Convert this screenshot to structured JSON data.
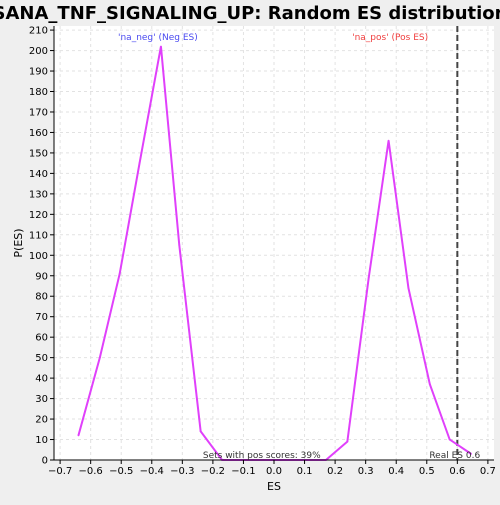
{
  "chart_data": {
    "type": "line",
    "title": "SANA_TNF_SIGNALING_UP: Random ES distribution",
    "xlabel": "ES",
    "ylabel": "P(ES)",
    "xlim": [
      -0.72,
      0.72
    ],
    "ylim": [
      0,
      212
    ],
    "x_ticks": [
      -0.7,
      -0.6,
      -0.5,
      -0.4,
      -0.3,
      -0.2,
      -0.1,
      0.0,
      0.1,
      0.2,
      0.3,
      0.4,
      0.5,
      0.6,
      0.7
    ],
    "x_tick_labels": [
      "−0.7",
      "−0.6",
      "−0.5",
      "−0.4",
      "−0.3",
      "−0.2",
      "−0.1",
      "0.0",
      "0.1",
      "0.2",
      "0.3",
      "0.4",
      "0.5",
      "0.6",
      "0.7"
    ],
    "y_ticks": [
      0,
      10,
      20,
      30,
      40,
      50,
      60,
      70,
      80,
      90,
      100,
      110,
      120,
      130,
      140,
      150,
      160,
      170,
      180,
      190,
      200,
      210
    ],
    "grid": true,
    "series": [
      {
        "name": "distribution",
        "color": "#e040fb",
        "x": [
          -0.64,
          -0.57,
          -0.505,
          -0.44,
          -0.37,
          -0.31,
          -0.24,
          -0.17,
          -0.105,
          -0.04,
          0.03,
          0.1,
          0.17,
          0.24,
          0.31,
          0.375,
          0.44,
          0.51,
          0.575,
          0.645
        ],
        "y": [
          12,
          50,
          91,
          145,
          202,
          105,
          14,
          0,
          0,
          0,
          0,
          0,
          0,
          9,
          89,
          156,
          84,
          37,
          10,
          3
        ]
      }
    ],
    "real_es": 0.6,
    "real_es_color": "#444444",
    "annotations": {
      "neg_label": "'na_neg' (Neg ES)",
      "neg_color": "#4a4af0",
      "pos_label": "'na_pos' (Pos ES)",
      "pos_color": "#f04040",
      "pos_scores": "Sets with pos scores: 39%",
      "real_es_label": "Real ES 0.6"
    }
  }
}
